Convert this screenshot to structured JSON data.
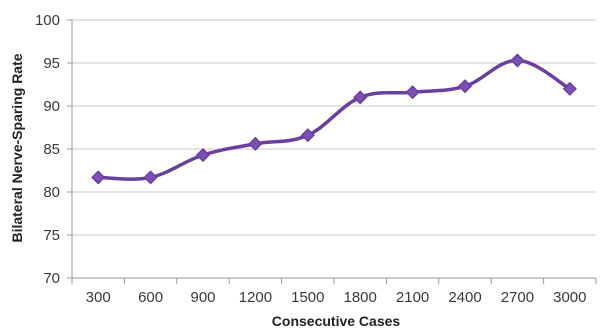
{
  "chart_data": {
    "type": "line",
    "title": "",
    "xlabel": "Consecutive Cases",
    "ylabel": "Bilateral Nerve-Sparing Rate",
    "categories": [
      "300",
      "600",
      "900",
      "1200",
      "1500",
      "1800",
      "2100",
      "2400",
      "2700",
      "3000"
    ],
    "series": [
      {
        "values": [
          81.7,
          81.7,
          84.3,
          85.6,
          86.6,
          91.0,
          91.6,
          92.3,
          95.3,
          92.0
        ]
      }
    ],
    "ylim": [
      70,
      100
    ],
    "yticks": [
      "70",
      "75",
      "80",
      "85",
      "90",
      "95",
      "100"
    ],
    "grid": "horizontal",
    "legend": "none",
    "colors": {
      "line": "#6a3fa0",
      "marker": "#7b4fb3",
      "grid": "#c8c8c8",
      "axis": "#9a9a9a"
    },
    "marker": "diamond"
  }
}
